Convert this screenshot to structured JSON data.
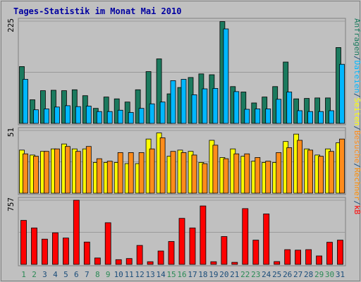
{
  "chart_data": {
    "type": "bar",
    "title": "Tages-Statistik im Monat Mai 2010",
    "categories": [
      "1",
      "2",
      "3",
      "4",
      "5",
      "6",
      "7",
      "8",
      "9",
      "10",
      "11",
      "12",
      "13",
      "14",
      "15",
      "16",
      "17",
      "18",
      "19",
      "20",
      "21",
      "22",
      "23",
      "24",
      "25",
      "26",
      "27",
      "28",
      "29",
      "30",
      "31"
    ],
    "weekend_days": [
      "1",
      "2",
      "8",
      "9",
      "15",
      "16",
      "22",
      "23",
      "29",
      "30"
    ],
    "panels": [
      {
        "name": "requests-files",
        "max_label": "225",
        "ylim": [
          0,
          225
        ],
        "series": [
          {
            "name": "Anfragen",
            "color": "#1b7a5e",
            "values": [
              125,
              52,
              72,
              73,
              72,
              74,
              61,
              33,
              58,
              54,
              47,
              74,
              114,
              142,
              65,
              79,
              101,
              109,
              107,
              224,
              81,
              69,
              45,
              58,
              81,
              135,
              54,
              55,
              56,
              56,
              167
            ]
          },
          {
            "name": "Dateien",
            "color": "#00b7ff",
            "values": [
              97,
              30,
              32,
              36,
              39,
              37,
              38,
              26,
              26,
              29,
              24,
              33,
              43,
              47,
              94,
              97,
              63,
              76,
              77,
              208,
              70,
              31,
              32,
              32,
              53,
              69,
              28,
              26,
              26,
              28,
              130
            ]
          }
        ]
      },
      {
        "name": "pages-visits",
        "max_label": "51",
        "ylim": [
          0,
          51
        ],
        "series": [
          {
            "name": "Seiten",
            "color": "#ffff00",
            "values": [
              35,
              31,
              34,
              36,
              40,
              36,
              36,
              25,
              25,
              25,
              24,
              24,
              44,
              49,
              30,
              35,
              34,
              25,
              43,
              29,
              36,
              30,
              26,
              25,
              25,
              42,
              48,
              36,
              31,
              36,
              41
            ]
          },
          {
            "name": "Besuche",
            "color": "#ff8c1a",
            "values": [
              32,
              30,
              34,
              36,
              38,
              34,
              38,
              28,
              26,
              33,
              33,
              33,
              36,
              45,
              34,
              33,
              31,
              24,
              39,
              28,
              32,
              32,
              29,
              26,
              33,
              37,
              43,
              35,
              30,
              34,
              44
            ]
          }
        ]
      },
      {
        "name": "volume",
        "max_label": "757",
        "ylim": [
          0,
          757
        ],
        "series": [
          {
            "name": "Rechner",
            "color": "#ff8c00",
            "values": []
          },
          {
            "name": "kB",
            "color": "#ff0000",
            "values": [
              519,
              430,
              298,
              373,
              311,
              757,
              264,
              76,
              492,
              56,
              69,
              224,
              32,
              158,
              270,
              543,
              430,
              690,
              32,
              329,
              24,
              658,
              286,
              596,
              33,
              174,
              168,
              174,
              100,
              261,
              286
            ]
          }
        ]
      }
    ],
    "right_legend": [
      {
        "text": "Anfragen",
        "color": "#1b7a5e"
      },
      {
        "text": "/",
        "color": "#1b4d7a"
      },
      {
        "text": "Dateien",
        "color": "#00b7ff"
      },
      {
        "text": "/",
        "color": "#1b4d7a"
      },
      {
        "text": "Seiten",
        "color": "#ffff00"
      },
      {
        "text": "/",
        "color": "#1b4d7a"
      },
      {
        "text": "Besuche",
        "color": "#ff8c1a"
      },
      {
        "text": "/",
        "color": "#1b4d7a"
      },
      {
        "text": "Rechner",
        "color": "#ff8c00"
      },
      {
        "text": "/",
        "color": "#1b4d7a"
      },
      {
        "text": "kB",
        "color": "#ff0000"
      }
    ],
    "colors": {
      "background": "#c0c0c0",
      "title": "#0000a0",
      "weekday_label": "#1b4d7a",
      "weekend_label": "#2a8a55",
      "bar_outline": "#000000"
    }
  }
}
